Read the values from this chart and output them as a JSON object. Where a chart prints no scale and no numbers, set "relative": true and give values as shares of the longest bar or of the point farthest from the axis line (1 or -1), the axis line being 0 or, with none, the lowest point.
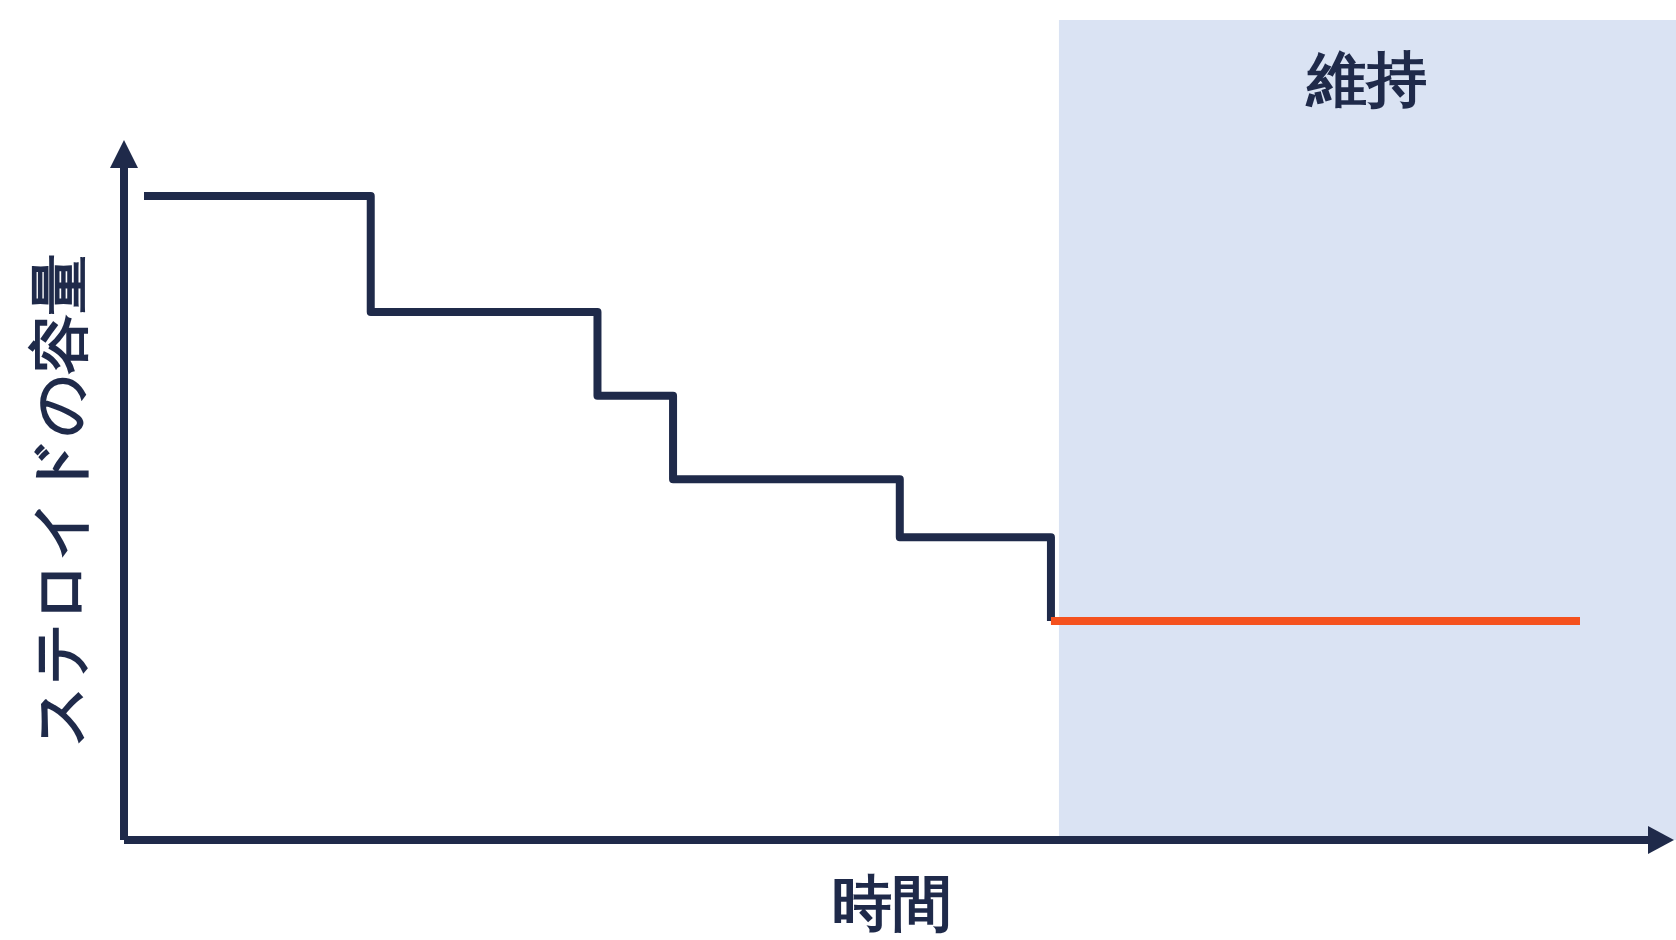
{
  "chart_data": {
    "type": "step",
    "relative": true,
    "xlabel": "時間",
    "ylabel": "ステロイドの容量",
    "categories": [
      null,
      null,
      null,
      null,
      null,
      null,
      null,
      null,
      null,
      null,
      null,
      null,
      null,
      null,
      null,
      null,
      null,
      null,
      null,
      null
    ],
    "series": [
      {
        "color": "#1f2a4a",
        "values": [
          1,
          1,
          1,
          0.82,
          0.82,
          0.82,
          0.69,
          0.56,
          0.56,
          0.56,
          0.47,
          0.47,
          0.34,
          null,
          null,
          null,
          null,
          null,
          null,
          null
        ]
      },
      {
        "color": "#f4511e",
        "values": [
          null,
          null,
          null,
          null,
          null,
          null,
          null,
          null,
          null,
          null,
          null,
          null,
          0.34,
          0.34,
          0.34,
          0.34,
          0.34,
          0.34,
          0.34,
          0.34
        ]
      }
    ],
    "annotations": [
      "維持"
    ]
  }
}
